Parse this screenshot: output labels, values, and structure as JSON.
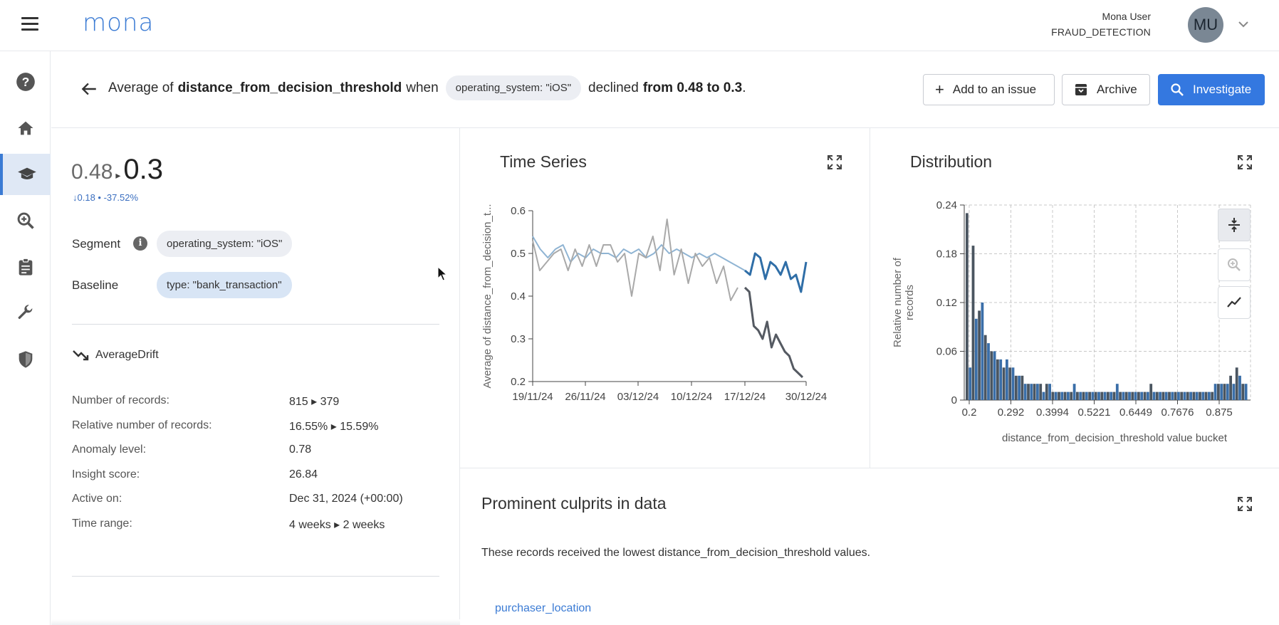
{
  "app": {
    "logo": "mona",
    "user_name": "Mona User",
    "user_org": "FRAUD_DETECTION",
    "avatar_initials": "MU"
  },
  "sidebar": {
    "items": [
      {
        "name": "help",
        "icon": "help-circle-icon"
      },
      {
        "name": "home",
        "icon": "home-icon"
      },
      {
        "name": "insights",
        "icon": "graduation-cap-icon",
        "active": true
      },
      {
        "name": "investigate",
        "icon": "zoom-in-icon"
      },
      {
        "name": "reports",
        "icon": "clipboard-icon"
      },
      {
        "name": "config",
        "icon": "wrench-icon"
      },
      {
        "name": "security",
        "icon": "shield-icon"
      }
    ]
  },
  "header": {
    "prefix": "Average of",
    "metric": "distance_from_decision_threshold",
    "when": "when",
    "segment_chip": "operating_system: \"iOS\"",
    "declined": "declined",
    "change": "from 0.48 to 0.3",
    "period": ".",
    "add_issue_label": "Add to an issue",
    "archive_label": "Archive",
    "investigate_label": "Investigate"
  },
  "summary": {
    "from_value": "0.48",
    "to_value": "0.3",
    "delta": "0.18 • -37.52%",
    "segment_label": "Segment",
    "segment_value": "operating_system: \"iOS\"",
    "baseline_label": "Baseline",
    "baseline_value": "type: \"bank_transaction\"",
    "drift_type": "AverageDrift"
  },
  "stats": [
    {
      "key": "Number of records:",
      "from": "815",
      "to": "379"
    },
    {
      "key": "Relative number of records:",
      "from": "16.55%",
      "to": "15.59%"
    },
    {
      "key": "Anomaly level:",
      "value": "0.78"
    },
    {
      "key": "Insight score:",
      "value": "26.84"
    },
    {
      "key": "Active on:",
      "value": "Dec 31, 2024 (+00:00)"
    },
    {
      "key": "Time range:",
      "from": "4 weeks",
      "to": "2 weeks"
    }
  ],
  "time_series": {
    "title": "Time Series",
    "chart_data": {
      "type": "line",
      "ylabel": "Average of distance_from_decision_t...",
      "ylim": [
        0.2,
        0.6
      ],
      "yticks": [
        "0.6",
        "0.5",
        "0.4",
        "0.3",
        "0.2"
      ],
      "xticks": [
        "19/11/24",
        "26/11/24",
        "03/12/24",
        "10/12/24",
        "17/12/24",
        "30/12/24"
      ],
      "series": [
        {
          "color": "#8fb4d3",
          "values": [
            0.54,
            0.51,
            0.49,
            0.51,
            0.52,
            0.48,
            0.5,
            0.49,
            0.51,
            0.5,
            0.5,
            0.49,
            0.51,
            0.5,
            0.51,
            0.49,
            0.5,
            0.52,
            0.5,
            0.51,
            0.5,
            0.49,
            0.5,
            0.49,
            0.5,
            0.49,
            0.48,
            0.47,
            0.46
          ]
        },
        {
          "color": "#a9a9a9",
          "values": [
            0.53,
            0.46,
            0.48,
            0.5,
            0.51,
            0.46,
            0.51,
            0.47,
            0.52,
            0.47,
            0.52,
            0.52,
            0.48,
            0.5,
            0.4,
            0.5,
            0.49,
            0.54,
            0.46,
            0.58,
            0.45,
            0.51,
            0.43,
            0.5,
            0.47,
            0.49,
            0.43,
            0.47,
            0.39,
            0.42
          ]
        },
        {
          "color": "#555a62",
          "values": [
            0.42,
            0.41,
            0.33,
            0.32,
            0.3,
            0.34,
            0.28,
            0.31,
            0.29,
            0.27,
            0.26,
            0.23,
            0.22,
            0.21
          ]
        },
        {
          "color": "#2f6ea7",
          "values": [
            0.46,
            0.45,
            0.5,
            0.49,
            0.44,
            0.48,
            0.47,
            0.45,
            0.48,
            0.44,
            0.45,
            0.41,
            0.48
          ]
        }
      ]
    }
  },
  "distribution": {
    "title": "Distribution",
    "chart_data": {
      "type": "bar",
      "xlabel": "distance_from_decision_threshold value bucket",
      "ylabel": "Relative number of records",
      "ylim": [
        0,
        0.24
      ],
      "yticks": [
        "0.24",
        "0.18",
        "0.12",
        "0.06",
        "0"
      ],
      "xticks": [
        "0.2",
        "0.292",
        "0.3994",
        "0.5221",
        "0.6449",
        "0.7676",
        "0.875"
      ],
      "series": [
        {
          "name": "dark",
          "color": "#4a5560",
          "values": [
            0.23,
            0.19,
            0.11,
            0.08,
            0.06,
            0.05,
            0.04,
            0.04,
            0.03,
            0.03,
            0.02,
            0.02,
            0.02,
            0.02,
            0.01,
            0.01,
            0.01,
            0.01,
            0.01,
            0.01,
            0.01,
            0.01,
            0.01,
            0.01,
            0.01,
            0.01,
            0.01,
            0.01,
            0.01,
            0.01,
            0.02,
            0.01,
            0.01,
            0.01,
            0.01,
            0.01,
            0.01,
            0.01,
            0.01,
            0.01,
            0.01,
            0.02,
            0.02,
            0.03,
            0.04,
            0.02
          ]
        },
        {
          "name": "blue",
          "color": "#3a6ea8",
          "values": [
            0.04,
            0.1,
            0.12,
            0.07,
            0.06,
            0.05,
            0.05,
            0.04,
            0.03,
            0.02,
            0.02,
            0.02,
            0.01,
            0.02,
            0.01,
            0.01,
            0.01,
            0.02,
            0.01,
            0.01,
            0.01,
            0.01,
            0.01,
            0.01,
            0.02,
            0.01,
            0.01,
            0.01,
            0.01,
            0.01,
            0.01,
            0.01,
            0.01,
            0.01,
            0.01,
            0.01,
            0.01,
            0.01,
            0.01,
            0.01,
            0.02,
            0.02,
            0.02,
            0.02,
            0.03,
            0.02
          ]
        }
      ]
    }
  },
  "culprits": {
    "title": "Prominent culprits in data",
    "description": "These records received the lowest distance_from_decision_threshold values.",
    "first_item": "purchaser_location"
  }
}
